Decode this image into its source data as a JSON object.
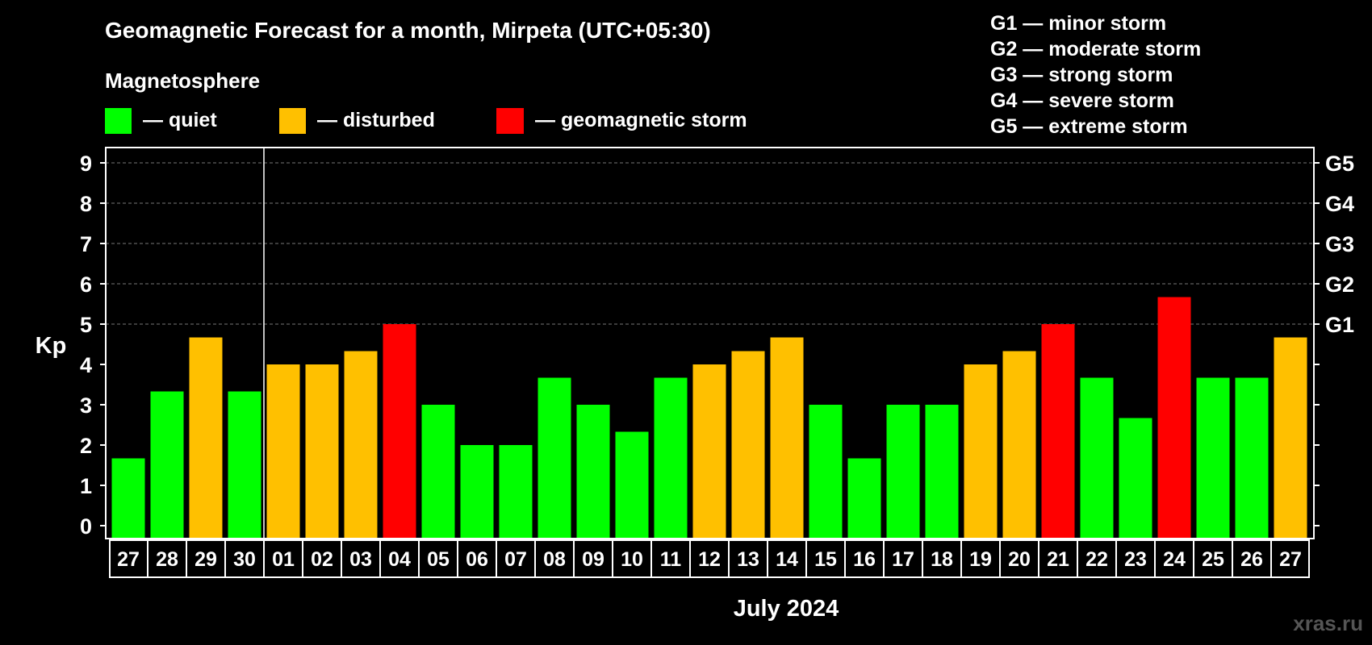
{
  "chart_data": {
    "type": "bar",
    "title": "Geomagnetic Forecast for a month, Mirpeta (UTC+05:30)",
    "subtitle": "Magnetosphere",
    "ylabel": "Kp",
    "xlabel": "July 2024",
    "ylim": [
      0,
      9
    ],
    "yticks": [
      "0",
      "1",
      "2",
      "3",
      "4",
      "5",
      "6",
      "7",
      "8",
      "9"
    ],
    "right_axis_labels": [
      {
        "kp": 5,
        "label": "G1"
      },
      {
        "kp": 6,
        "label": "G2"
      },
      {
        "kp": 7,
        "label": "G3"
      },
      {
        "kp": 8,
        "label": "G4"
      },
      {
        "kp": 9,
        "label": "G5"
      }
    ],
    "legend": [
      {
        "label": "— quiet",
        "color": "#00ff00"
      },
      {
        "label": "— disturbed",
        "color": "#ffc000"
      },
      {
        "label": "— geomagnetic storm",
        "color": "#ff0000"
      }
    ],
    "storm_scale": [
      "G1 — minor storm",
      "G2 — moderate storm",
      "G3 — strong storm",
      "G4 — severe storm",
      "G5 — extreme storm"
    ],
    "month_divider_after_index": 3,
    "categories": [
      "27",
      "28",
      "29",
      "30",
      "01",
      "02",
      "03",
      "04",
      "05",
      "06",
      "07",
      "08",
      "09",
      "10",
      "11",
      "12",
      "13",
      "14",
      "15",
      "16",
      "17",
      "18",
      "19",
      "20",
      "21",
      "22",
      "23",
      "24",
      "25",
      "26",
      "27"
    ],
    "values": [
      1.67,
      3.33,
      4.67,
      3.33,
      4,
      4,
      4.33,
      5,
      3,
      2,
      2,
      3.67,
      3,
      2.33,
      3.67,
      4,
      4.33,
      4.67,
      3,
      1.67,
      3,
      3,
      4,
      4.33,
      5,
      3.67,
      2.67,
      5.67,
      3.67,
      3.67,
      4.67
    ],
    "levels": [
      "quiet",
      "quiet",
      "disturbed",
      "quiet",
      "disturbed",
      "disturbed",
      "disturbed",
      "storm",
      "quiet",
      "quiet",
      "quiet",
      "quiet",
      "quiet",
      "quiet",
      "quiet",
      "disturbed",
      "disturbed",
      "disturbed",
      "quiet",
      "quiet",
      "quiet",
      "quiet",
      "disturbed",
      "disturbed",
      "storm",
      "quiet",
      "quiet",
      "storm",
      "quiet",
      "quiet",
      "disturbed"
    ],
    "colors": {
      "quiet": "#00ff00",
      "disturbed": "#ffc000",
      "storm": "#ff0000"
    }
  },
  "watermark": "xras.ru"
}
